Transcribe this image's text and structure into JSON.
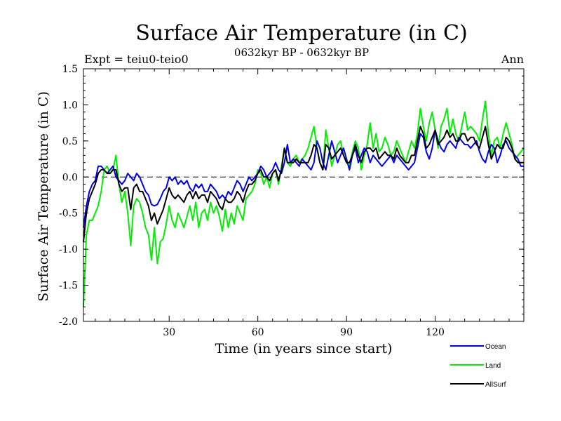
{
  "chart_data": {
    "type": "line",
    "title": "Surface Air Temperature (in C)",
    "subtitle": "0632kyr BP - 0632kyr BP",
    "expt_label": "Expt = teiu0-teio0",
    "season_label": "Ann",
    "xlabel": "Time (in years since start)",
    "ylabel": "Surface Air Temperature (in C)",
    "xlim": [
      1,
      150
    ],
    "ylim": [
      -2.0,
      1.5
    ],
    "xticks": [
      30,
      60,
      90,
      120
    ],
    "yticks": [
      -2.0,
      -1.5,
      -1.0,
      -0.5,
      0.0,
      0.5,
      1.0,
      1.5
    ],
    "yticklabels": [
      "-2.0",
      "-1.5",
      "-1.0",
      "-0.5",
      "0.0",
      "0.5",
      "1.0",
      "1.5"
    ],
    "reference_line": 0.0,
    "series": [
      {
        "name": "Ocean",
        "color": "#0000ee",
        "x_start": 1,
        "x_step": 1,
        "values": [
          -0.7,
          -0.4,
          -0.2,
          -0.1,
          -0.05,
          0.15,
          0.15,
          0.1,
          0.05,
          0.1,
          0.15,
          0.0,
          -0.05,
          -0.1,
          -0.05,
          0.05,
          0.0,
          -0.05,
          0.05,
          0.0,
          -0.1,
          -0.2,
          -0.25,
          -0.38,
          -0.4,
          -0.38,
          -0.3,
          -0.2,
          -0.15,
          0.0,
          -0.05,
          0.0,
          -0.1,
          -0.05,
          -0.1,
          -0.05,
          -0.15,
          -0.2,
          -0.1,
          -0.15,
          -0.1,
          -0.2,
          -0.2,
          -0.1,
          -0.15,
          -0.2,
          -0.3,
          -0.25,
          -0.3,
          -0.2,
          -0.25,
          -0.15,
          -0.05,
          -0.1,
          -0.2,
          -0.1,
          0.0,
          -0.05,
          0.0,
          0.05,
          0.15,
          0.1,
          0.0,
          0.05,
          0.1,
          0.2,
          0.1,
          0.05,
          0.2,
          0.45,
          0.2,
          0.25,
          0.2,
          0.15,
          0.25,
          0.2,
          0.15,
          0.1,
          0.2,
          0.5,
          0.4,
          0.2,
          0.1,
          0.3,
          0.5,
          0.35,
          0.2,
          0.3,
          0.4,
          0.25,
          0.1,
          0.3,
          0.4,
          0.2,
          0.3,
          0.4,
          0.35,
          0.2,
          0.3,
          0.25,
          0.2,
          0.15,
          0.2,
          0.25,
          0.3,
          0.2,
          0.3,
          0.25,
          0.2,
          0.15,
          0.1,
          0.15,
          0.2,
          0.4,
          0.6,
          0.55,
          0.35,
          0.25,
          0.4,
          0.65,
          0.5,
          0.4,
          0.35,
          0.45,
          0.5,
          0.45,
          0.4,
          0.55,
          0.5,
          0.45,
          0.45,
          0.4,
          0.45,
          0.5,
          0.35,
          0.25,
          0.2,
          0.35,
          0.45,
          0.4,
          0.2,
          0.3,
          0.45,
          0.5,
          0.4,
          0.35,
          0.3,
          0.25,
          0.15,
          0.15
        ]
      },
      {
        "name": "Land",
        "color": "#00ee00",
        "x_start": 1,
        "x_step": 1,
        "values": [
          -1.8,
          -0.8,
          -0.6,
          -0.6,
          -0.5,
          -0.4,
          -0.2,
          0.1,
          0.15,
          0.05,
          0.1,
          0.3,
          -0.1,
          -0.35,
          -0.2,
          -0.5,
          -0.95,
          -0.4,
          -0.3,
          -0.35,
          -0.5,
          -0.7,
          -0.8,
          -1.15,
          -0.7,
          -1.2,
          -0.9,
          -0.85,
          -0.65,
          -0.4,
          -0.6,
          -0.7,
          -0.5,
          -0.6,
          -0.7,
          -0.55,
          -0.4,
          -0.6,
          -0.35,
          -0.7,
          -0.5,
          -0.45,
          -0.6,
          -0.35,
          -0.5,
          -0.4,
          -0.55,
          -0.75,
          -0.45,
          -0.7,
          -0.5,
          -0.65,
          -0.4,
          -0.5,
          -0.6,
          -0.3,
          -0.25,
          -0.2,
          -0.1,
          0.1,
          0.05,
          -0.1,
          0.0,
          -0.15,
          0.05,
          0.1,
          -0.1,
          0.15,
          0.4,
          0.2,
          0.15,
          0.25,
          0.3,
          0.2,
          0.25,
          0.3,
          0.4,
          0.55,
          0.7,
          0.4,
          0.2,
          0.1,
          0.65,
          0.4,
          0.15,
          0.3,
          0.45,
          0.5,
          0.3,
          0.2,
          0.15,
          0.35,
          0.5,
          0.4,
          0.1,
          0.3,
          0.45,
          0.75,
          0.4,
          0.6,
          0.35,
          0.4,
          0.55,
          0.45,
          0.3,
          0.35,
          0.5,
          0.4,
          0.3,
          0.2,
          0.35,
          0.5,
          0.4,
          0.6,
          0.95,
          0.7,
          0.5,
          0.75,
          0.9,
          0.65,
          0.4,
          0.7,
          0.8,
          0.95,
          0.6,
          0.8,
          0.6,
          0.5,
          0.7,
          0.9,
          0.65,
          0.7,
          0.65,
          0.6,
          0.5,
          0.8,
          1.05,
          0.6,
          0.3,
          0.5,
          0.55,
          0.4,
          0.6,
          0.75,
          0.6,
          0.45,
          0.25,
          0.3,
          0.35,
          0.4
        ]
      },
      {
        "name": "AllSurf",
        "color": "#000000",
        "x_start": 1,
        "x_step": 1,
        "values": [
          -0.9,
          -0.5,
          -0.3,
          -0.2,
          -0.1,
          0.05,
          0.1,
          0.1,
          0.05,
          0.05,
          0.1,
          0.1,
          -0.1,
          -0.2,
          -0.15,
          -0.15,
          -0.45,
          -0.15,
          -0.1,
          -0.2,
          -0.2,
          -0.3,
          -0.4,
          -0.6,
          -0.5,
          -0.65,
          -0.55,
          -0.45,
          -0.3,
          -0.15,
          -0.25,
          -0.3,
          -0.25,
          -0.3,
          -0.35,
          -0.25,
          -0.2,
          -0.3,
          -0.2,
          -0.3,
          -0.25,
          -0.25,
          -0.35,
          -0.2,
          -0.25,
          -0.3,
          -0.4,
          -0.45,
          -0.3,
          -0.35,
          -0.35,
          -0.3,
          -0.2,
          -0.25,
          -0.35,
          -0.2,
          -0.1,
          -0.1,
          -0.05,
          0.05,
          0.1,
          0.0,
          0.0,
          -0.05,
          0.05,
          0.1,
          -0.05,
          0.1,
          0.4,
          0.2,
          0.2,
          0.2,
          0.25,
          0.2,
          0.2,
          0.2,
          0.2,
          0.3,
          0.45,
          0.4,
          0.2,
          0.1,
          0.45,
          0.4,
          0.25,
          0.3,
          0.35,
          0.4,
          0.3,
          0.2,
          0.2,
          0.3,
          0.45,
          0.3,
          0.2,
          0.35,
          0.4,
          0.4,
          0.35,
          0.4,
          0.25,
          0.3,
          0.35,
          0.3,
          0.3,
          0.25,
          0.4,
          0.3,
          0.25,
          0.2,
          0.2,
          0.3,
          0.3,
          0.5,
          0.7,
          0.6,
          0.4,
          0.45,
          0.55,
          0.65,
          0.45,
          0.5,
          0.55,
          0.65,
          0.55,
          0.6,
          0.5,
          0.5,
          0.6,
          0.6,
          0.5,
          0.55,
          0.55,
          0.45,
          0.4,
          0.55,
          0.7,
          0.45,
          0.25,
          0.35,
          0.45,
          0.4,
          0.4,
          0.55,
          0.5,
          0.4,
          0.25,
          0.2,
          0.2,
          0.2
        ]
      }
    ]
  }
}
